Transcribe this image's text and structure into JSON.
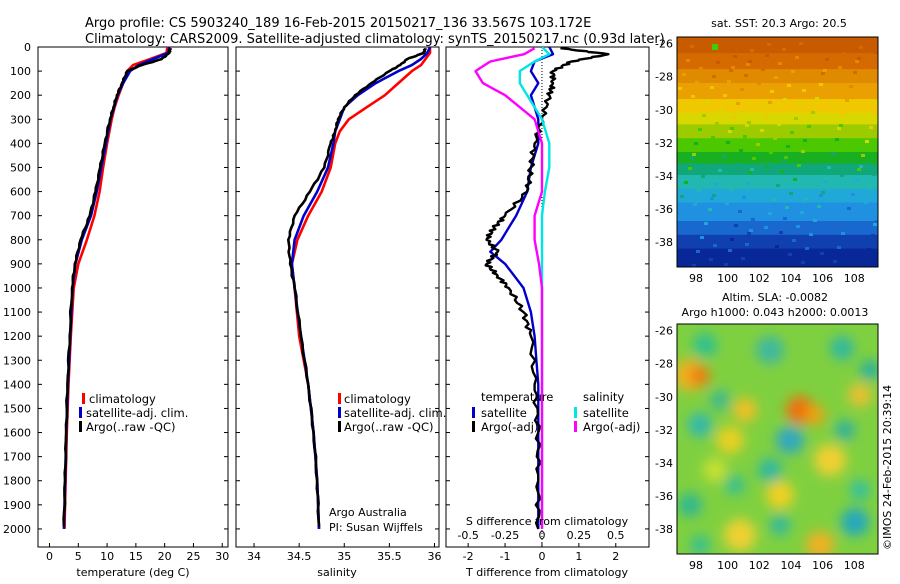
{
  "header": {
    "line1": "Argo profile: CS 5903240_189 16-Feb-2015 20150217_136 33.567S 103.172E",
    "line2": "Climatology: CARS2009. Satellite-adjusted climatology: synTS_20150217.nc (0.93d later)"
  },
  "chart_data": [
    {
      "type": "line",
      "xlabel": "temperature (deg C)",
      "ylabel": "",
      "xlim": [
        -2,
        31
      ],
      "ylim": [
        2075,
        0
      ],
      "x_ticks": [
        "0",
        "5",
        "10",
        "15",
        "20",
        "25",
        "30"
      ],
      "y_ticks": [
        "0",
        "100",
        "200",
        "300",
        "400",
        "500",
        "600",
        "700",
        "800",
        "900",
        "1000",
        "1100",
        "1200",
        "1300",
        "1400",
        "1500",
        "1600",
        "1700",
        "1800",
        "1900",
        "2000"
      ],
      "legend": [
        "climatology",
        "satellite-adj. clim.",
        "Argo(..raw -QC)"
      ],
      "series": [
        {
          "name": "climatology",
          "color": "#ff0000",
          "depth": [
            0,
            25,
            50,
            75,
            100,
            150,
            200,
            250,
            300,
            400,
            500,
            600,
            700,
            800,
            900,
            1000,
            1200,
            1400,
            1600,
            1800,
            2000
          ],
          "values": [
            20.5,
            20.3,
            17.5,
            14.5,
            13.5,
            12.8,
            12.0,
            11.3,
            10.8,
            10.0,
            9.3,
            8.7,
            7.8,
            6.5,
            5.0,
            4.2,
            3.7,
            3.3,
            3.0,
            2.8,
            2.6
          ]
        },
        {
          "name": "satellite-adj. clim.",
          "color": "#0000cc",
          "depth": [
            0,
            25,
            50,
            75,
            100,
            150,
            200,
            250,
            300,
            400,
            500,
            600,
            700,
            800,
            900,
            1000,
            1200,
            1400,
            1600,
            1800,
            2000
          ],
          "values": [
            20.8,
            20.6,
            18.0,
            15.5,
            14.0,
            12.8,
            11.8,
            11.2,
            10.6,
            9.8,
            9.0,
            8.2,
            7.2,
            5.6,
            4.5,
            4.0,
            3.6,
            3.2,
            2.9,
            2.7,
            2.5
          ]
        },
        {
          "name": "Argo(..raw -QC)",
          "color": "#000000",
          "depth": [
            5,
            25,
            50,
            75,
            100,
            150,
            200,
            250,
            300,
            400,
            500,
            600,
            700,
            800,
            900,
            1000,
            1200,
            1400,
            1600,
            1800,
            1990
          ],
          "values": [
            21.0,
            20.8,
            19.5,
            16.0,
            13.5,
            12.6,
            11.7,
            11.1,
            10.5,
            9.6,
            8.8,
            8.0,
            7.0,
            5.4,
            4.4,
            3.9,
            3.5,
            3.1,
            2.9,
            2.7,
            2.5
          ]
        }
      ]
    },
    {
      "type": "line",
      "xlabel": "salinity",
      "xlim": [
        33.8,
        36.05
      ],
      "ylim": [
        2075,
        0
      ],
      "x_ticks": [
        "34",
        "34.5",
        "35",
        "35.5",
        "36"
      ],
      "legend": [
        "climatology",
        "satellite-adj. clim.",
        "Argo(..raw -QC)"
      ],
      "annotation": [
        "Argo Australia",
        "PI: Susan Wijffels"
      ],
      "series": [
        {
          "name": "climatology",
          "color": "#ff0000",
          "depth": [
            0,
            25,
            50,
            75,
            100,
            150,
            200,
            250,
            300,
            350,
            400,
            500,
            600,
            700,
            800,
            900,
            1000,
            1200,
            1400,
            1600,
            1800,
            2000
          ],
          "values": [
            35.95,
            35.95,
            35.9,
            35.85,
            35.75,
            35.6,
            35.45,
            35.25,
            35.05,
            34.95,
            34.9,
            34.85,
            34.75,
            34.6,
            34.48,
            34.42,
            34.45,
            34.5,
            34.6,
            34.66,
            34.7,
            34.72
          ]
        },
        {
          "name": "satellite-adj. clim.",
          "color": "#0000cc",
          "depth": [
            0,
            25,
            50,
            75,
            100,
            150,
            200,
            250,
            300,
            350,
            400,
            500,
            600,
            700,
            800,
            900,
            1000,
            1200,
            1400,
            1600,
            1800,
            2000
          ],
          "values": [
            35.95,
            35.92,
            35.85,
            35.75,
            35.6,
            35.35,
            35.15,
            35.0,
            34.95,
            34.9,
            34.88,
            34.82,
            34.7,
            34.55,
            34.45,
            34.42,
            34.45,
            34.52,
            34.6,
            34.66,
            34.7,
            34.72
          ]
        },
        {
          "name": "Argo(..raw -QC)",
          "color": "#000000",
          "depth": [
            5,
            25,
            50,
            75,
            100,
            150,
            200,
            250,
            300,
            350,
            400,
            500,
            600,
            700,
            800,
            900,
            1000,
            1200,
            1400,
            1600,
            1800,
            1990
          ],
          "values": [
            35.9,
            35.88,
            35.7,
            35.62,
            35.5,
            35.3,
            35.12,
            35.0,
            34.93,
            34.9,
            34.85,
            34.78,
            34.62,
            34.45,
            34.38,
            34.4,
            34.45,
            34.52,
            34.6,
            34.66,
            34.7,
            34.72
          ]
        }
      ]
    },
    {
      "type": "line",
      "xlabel": "T difference from climatology",
      "xlabel_top": "S difference from climatology",
      "xlim": [
        -2.6,
        2.9
      ],
      "ylim": [
        2075,
        0
      ],
      "x_ticks": [
        "-2",
        "-1",
        "0",
        "1",
        "2"
      ],
      "x_ticks_salinity": [
        "-0.5",
        "-0.25",
        "0",
        "0.25",
        "0.5"
      ],
      "legend_title_t": "temperature",
      "legend_title_s": "salinity",
      "legend": [
        "satellite",
        "Argo(-adj)",
        "satellite",
        "Argo(-adj)"
      ],
      "series": [
        {
          "name": "temperature satellite",
          "color": "#0000cc",
          "depth": [
            0,
            30,
            60,
            100,
            150,
            200,
            300,
            400,
            500,
            600,
            700,
            800,
            850,
            900,
            1000,
            1100,
            1200,
            1400,
            1600,
            1800,
            2000
          ],
          "values": [
            0.2,
            0.3,
            -0.2,
            -0.3,
            -0.1,
            -0.3,
            -0.1,
            -0.1,
            -0.3,
            -0.4,
            -0.7,
            -1.1,
            -1.4,
            -1.0,
            -0.5,
            -0.3,
            -0.2,
            -0.1,
            -0.1,
            -0.1,
            -0.1
          ]
        },
        {
          "name": "temperature Argo(-adj)",
          "color": "#000000",
          "depth": [
            5,
            30,
            60,
            100,
            150,
            200,
            300,
            400,
            500,
            600,
            700,
            750,
            800,
            850,
            900,
            950,
            1000,
            1100,
            1200,
            1400,
            1600,
            1800,
            2000
          ],
          "values": [
            0.5,
            1.8,
            0.8,
            0.3,
            0.3,
            0.2,
            0.0,
            -0.2,
            -0.3,
            -0.4,
            -1.0,
            -1.3,
            -1.5,
            -1.2,
            -1.5,
            -1.2,
            -0.9,
            -0.5,
            -0.3,
            -0.2,
            -0.1,
            -0.1,
            -0.1
          ]
        },
        {
          "name": "salinity satellite",
          "color": "#00e5e5",
          "depth": [
            0,
            30,
            60,
            100,
            150,
            200,
            300,
            400,
            500,
            600,
            700,
            800,
            900,
            1000,
            1200,
            1400,
            1600,
            1800,
            2000
          ],
          "values": [
            0.0,
            0.05,
            -0.05,
            -0.15,
            -0.15,
            -0.1,
            0.0,
            0.05,
            0.05,
            0.02,
            0.0,
            0.0,
            0.0,
            0.0,
            0.0,
            0.0,
            0.0,
            0.0,
            0.0
          ]
        },
        {
          "name": "salinity Argo(-adj)",
          "color": "#ff00ff",
          "depth": [
            5,
            30,
            60,
            100,
            150,
            200,
            300,
            400,
            500,
            600,
            700,
            800,
            900,
            1000,
            1200,
            1400,
            1600,
            1800,
            2000
          ],
          "values": [
            -0.05,
            -0.12,
            -0.35,
            -0.45,
            -0.4,
            -0.25,
            -0.05,
            0.0,
            0.0,
            0.0,
            -0.05,
            -0.05,
            -0.02,
            0.0,
            0.0,
            0.0,
            0.0,
            0.0,
            0.0
          ]
        }
      ]
    },
    {
      "type": "heatmap",
      "title": "sat. SST: 20.3  Argo: 20.5",
      "x_ticks": [
        "98",
        "100",
        "102",
        "104",
        "106",
        "108"
      ],
      "y_ticks": [
        "-26",
        "-28",
        "-30",
        "-32",
        "-34",
        "-36",
        "-38"
      ],
      "xlim": [
        96.8,
        109.5
      ],
      "ylim": [
        -39.5,
        -25.6
      ]
    },
    {
      "type": "heatmap",
      "title_line1": "Altim. SLA: -0.0082",
      "title_line2": "Argo h1000: 0.043  h2000: 0.0013",
      "x_ticks": [
        "98",
        "100",
        "102",
        "104",
        "106",
        "108"
      ],
      "y_ticks": [
        "-26",
        "-28",
        "-30",
        "-32",
        "-34",
        "-36",
        "-38"
      ],
      "xlim": [
        96.8,
        109.5
      ],
      "ylim": [
        -39.5,
        -25.6
      ]
    }
  ],
  "side_text": "©IMOS 24-Feb-2015 20:39:14"
}
